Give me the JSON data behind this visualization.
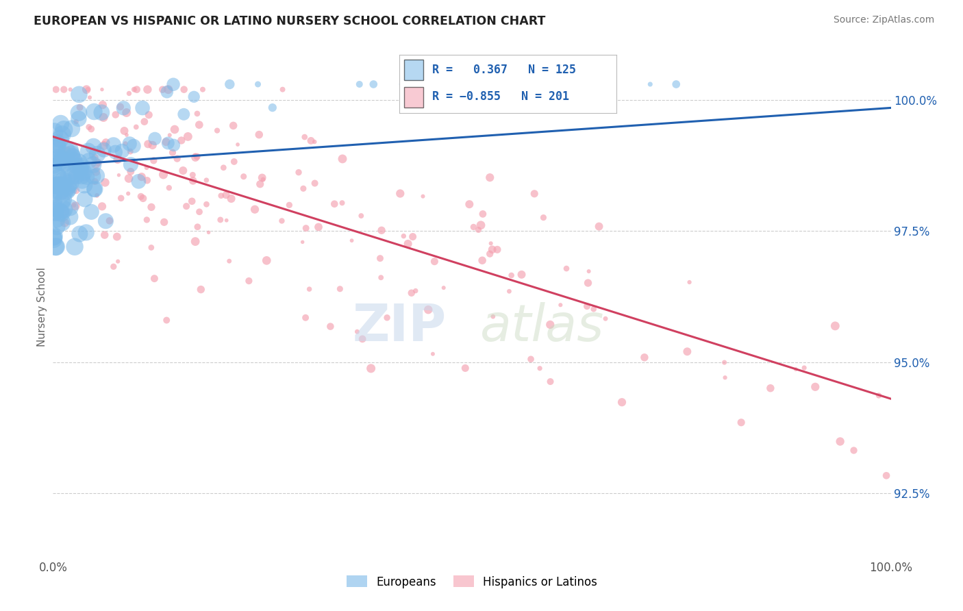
{
  "title": "EUROPEAN VS HISPANIC OR LATINO NURSERY SCHOOL CORRELATION CHART",
  "source": "Source: ZipAtlas.com",
  "ylabel": "Nursery School",
  "legend_european": "Europeans",
  "legend_hispanic": "Hispanics or Latinos",
  "R_european": 0.367,
  "N_european": 125,
  "R_hispanic": -0.855,
  "N_hispanic": 201,
  "blue_color": "#7ab8e8",
  "pink_color": "#f4a0b0",
  "blue_line_color": "#2060b0",
  "pink_line_color": "#d04060",
  "xmin": 0.0,
  "xmax": 1.0,
  "ymin": 0.913,
  "ymax": 1.008,
  "yticks": [
    0.925,
    0.95,
    0.975,
    1.0
  ],
  "ytick_labels": [
    "92.5%",
    "95.0%",
    "97.5%",
    "100.0%"
  ],
  "background_color": "#ffffff",
  "grid_color": "#cccccc",
  "watermark_zip": "ZIP",
  "watermark_atlas": "atlas"
}
